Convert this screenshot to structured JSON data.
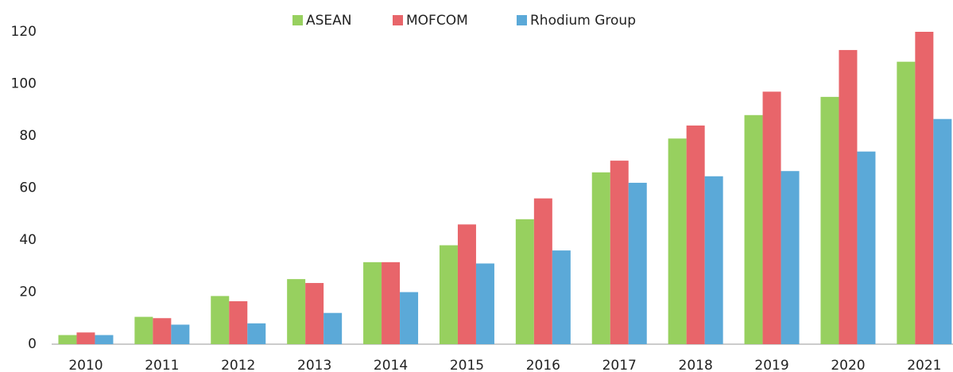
{
  "chart_data": {
    "type": "bar",
    "categories": [
      "2010",
      "2011",
      "2012",
      "2013",
      "2014",
      "2015",
      "2016",
      "2017",
      "2018",
      "2019",
      "2020",
      "2021"
    ],
    "series": [
      {
        "name": "ASEAN",
        "color": "#97d05f",
        "values": [
          3.5,
          10.5,
          18.5,
          25,
          31.5,
          38,
          48,
          66,
          79,
          88,
          95,
          108.5
        ]
      },
      {
        "name": "MOFCOM",
        "color": "#e8656a",
        "values": [
          4.5,
          10,
          16.5,
          23.5,
          31.5,
          46,
          56,
          70.5,
          84,
          97,
          113,
          120
        ]
      },
      {
        "name": "Rhodium Group",
        "color": "#5ba9d8",
        "values": [
          3.5,
          7.5,
          8,
          12,
          20,
          31,
          36,
          62,
          64.5,
          66.5,
          74,
          86.5
        ]
      }
    ],
    "ylim": [
      0,
      120
    ],
    "yticks": [
      0,
      20,
      40,
      60,
      80,
      100,
      120
    ],
    "grid": false,
    "legend": "top"
  }
}
